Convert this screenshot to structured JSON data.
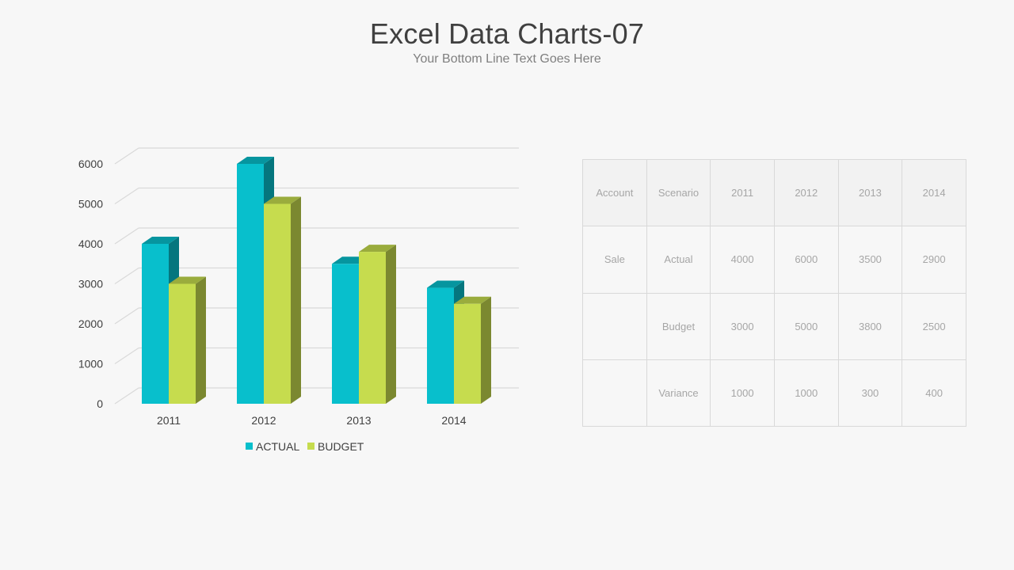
{
  "slide": {
    "title": "Excel Data Charts-07",
    "subtitle": "Your Bottom Line Text Goes Here"
  },
  "colors": {
    "actual": "#08bfcc",
    "budget": "#c6dc4e",
    "background": "#f7f7f7",
    "grid": "#d9d9d9"
  },
  "chart_data": {
    "type": "bar",
    "title": "",
    "xlabel": "",
    "ylabel": "",
    "categories": [
      "2011",
      "2012",
      "2013",
      "2014"
    ],
    "series": [
      {
        "name": "ACTUAL",
        "values": [
          4000,
          6000,
          3500,
          2900
        ]
      },
      {
        "name": "BUDGET",
        "values": [
          3000,
          5000,
          3800,
          2500
        ]
      }
    ],
    "ylim": [
      0,
      6000
    ],
    "yticks": [
      0,
      1000,
      2000,
      3000,
      4000,
      5000,
      6000
    ],
    "grid": true,
    "legend_position": "bottom",
    "style": "3d-clustered-column"
  },
  "table": {
    "headers": [
      "Account",
      "Scenario",
      "2011",
      "2012",
      "2013",
      "2014"
    ],
    "rows": [
      [
        "Sale",
        "Actual",
        "4000",
        "6000",
        "3500",
        "2900"
      ],
      [
        "",
        "Budget",
        "3000",
        "5000",
        "3800",
        "2500"
      ],
      [
        "",
        "Variance",
        "1000",
        "1000",
        "300",
        "400"
      ]
    ]
  }
}
